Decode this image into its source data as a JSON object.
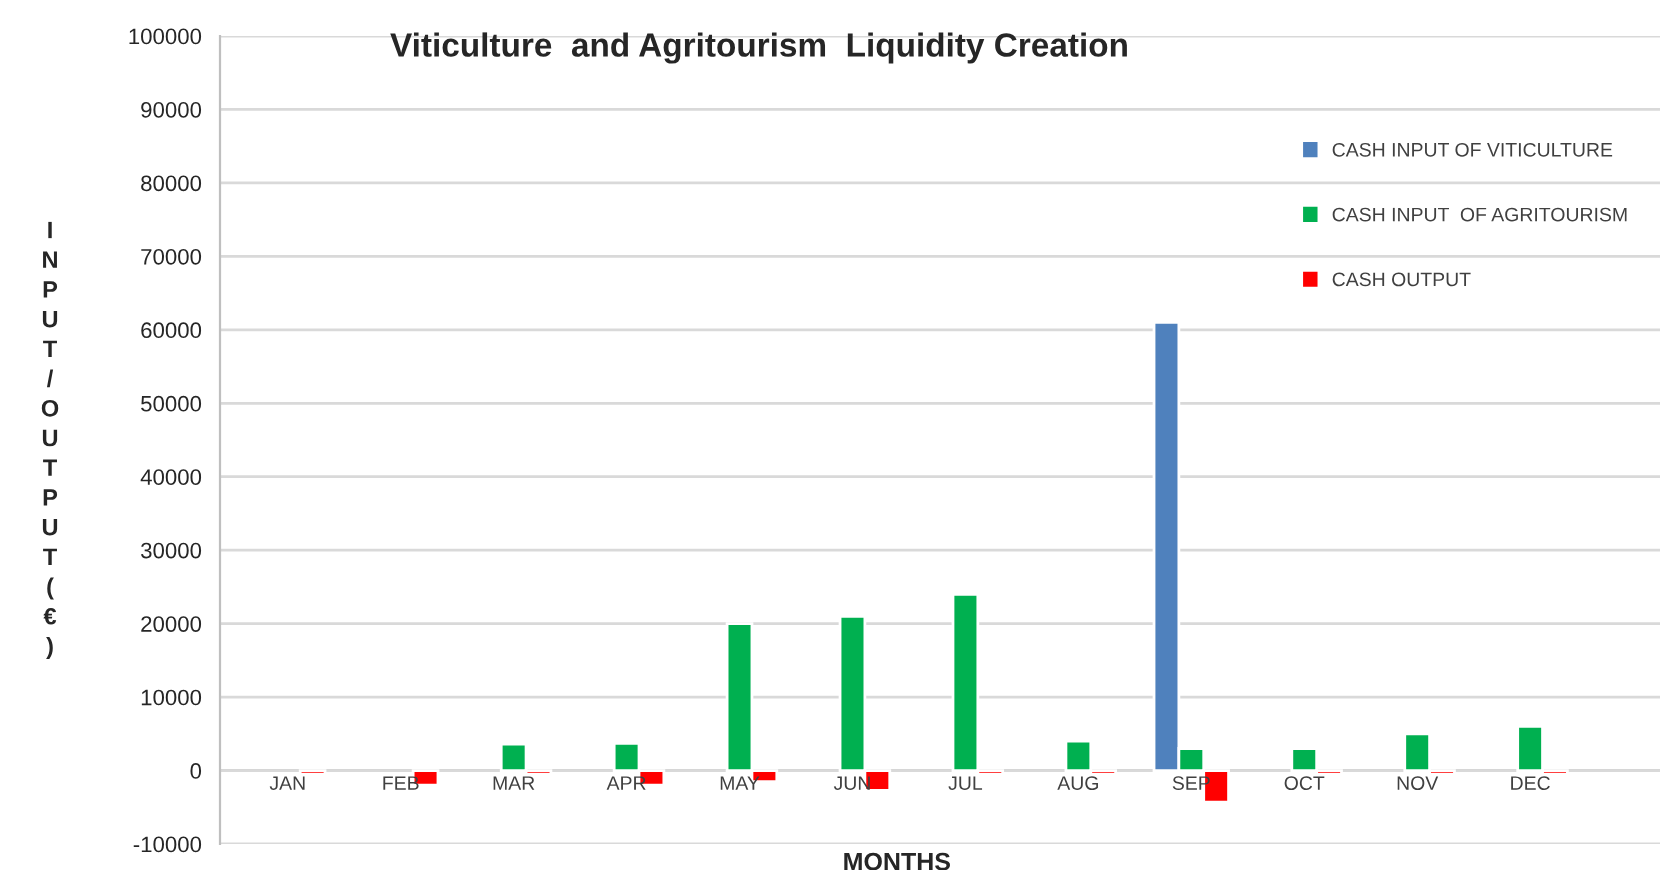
{
  "chart_data": {
    "type": "bar",
    "title": "Viticulture  and Agritourism  Liquidity Creation",
    "xlabel": "MONTHS",
    "ylabel": "INPUT/OUTPUT(€)",
    "categories": [
      "JAN",
      "FEB",
      "MAR",
      "APR",
      "MAY",
      "JUN",
      "JUL",
      "AUG",
      "SEP",
      "OCT",
      "NOV",
      "DEC"
    ],
    "series": [
      {
        "name": "CASH INPUT OF VITICULTURE",
        "color": "#4f81bd",
        "values": [
          null,
          null,
          null,
          null,
          null,
          null,
          null,
          null,
          61000,
          null,
          null,
          null
        ]
      },
      {
        "name": "CASH INPUT  OF AGRITOURISM",
        "color": "#00b050",
        "values": [
          null,
          null,
          3600,
          3700,
          20000,
          21000,
          24000,
          4000,
          3000,
          3000,
          5000,
          6000
        ]
      },
      {
        "name": "CASH OUTPUT",
        "color": "#ff0000",
        "values": [
          -500,
          -2000,
          -500,
          -2000,
          -1500,
          -2700,
          -500,
          -500,
          -4300,
          -500,
          -500,
          -500
        ]
      }
    ],
    "ylim": [
      -10000,
      100000
    ],
    "yticks": [
      -10000,
      0,
      10000,
      20000,
      30000,
      40000,
      50000,
      60000,
      70000,
      80000,
      90000,
      100000
    ],
    "grid": "y",
    "legend": "top right"
  }
}
